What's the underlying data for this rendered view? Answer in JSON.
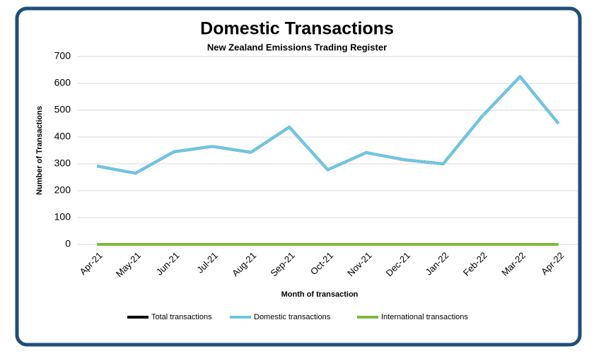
{
  "chart_data": {
    "type": "line",
    "title": "Domestic Transactions",
    "subtitle": "New Zealand Emissions Trading Register",
    "x_label": "Month of transaction",
    "y_label": "Number of Transactions",
    "categories": [
      "Apr-21",
      "May-21",
      "Jun-21",
      "Jul-21",
      "Aug-21",
      "Sep-21",
      "Oct-21",
      "Nov-21",
      "Dec-21",
      "Jan-22",
      "Feb-22",
      "Mar-22",
      "Apr-22"
    ],
    "series": [
      {
        "name": "Total transactions",
        "color": "#000000",
        "values": [
          292,
          265,
          345,
          365,
          343,
          437,
          278,
          342,
          315,
          300,
          475,
          625,
          450
        ]
      },
      {
        "name": "Domestic transactions",
        "color": "#6ec6e6",
        "values": [
          292,
          265,
          345,
          365,
          343,
          437,
          278,
          342,
          315,
          300,
          475,
          625,
          450
        ]
      },
      {
        "name": "International transactions",
        "color": "#7dba3b",
        "values": [
          0,
          0,
          0,
          0,
          0,
          0,
          0,
          0,
          0,
          0,
          0,
          0,
          0
        ]
      }
    ],
    "ylim": [
      0,
      700
    ],
    "yticks": [
      0,
      100,
      200,
      300,
      400,
      500,
      600,
      700
    ],
    "grid": true,
    "legend": "bottom"
  }
}
